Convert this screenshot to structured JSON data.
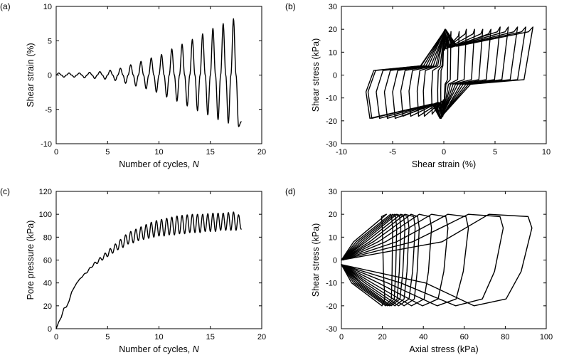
{
  "chart_data": [
    {
      "type": "line",
      "panel_label": "(a)",
      "xlabel": "Number of cycles, ",
      "xlabel_var": "N",
      "ylabel": "Shear strain (%)",
      "xlim": [
        0,
        20
      ],
      "ylim": [
        -10,
        10
      ],
      "xticks": [
        0,
        5,
        10,
        15,
        20
      ],
      "yticks": [
        -10,
        -5,
        0,
        5,
        10
      ],
      "grid": false,
      "series": [
        {
          "x": [
            0,
            0.25,
            0.5,
            0.75,
            1.0,
            1.25,
            1.5,
            1.75,
            2.0,
            2.25,
            2.5,
            2.75,
            3.0,
            3.25,
            3.5,
            3.75,
            4.0,
            4.25,
            4.5,
            4.75,
            5.0,
            5.25,
            5.5,
            5.75,
            6.0,
            6.25,
            6.5,
            6.75,
            7.0,
            7.25,
            7.5,
            7.75,
            8.0,
            8.25,
            8.5,
            8.75,
            9.0,
            9.25,
            9.5,
            9.75,
            10.0,
            10.25,
            10.5,
            10.75,
            11.0,
            11.25,
            11.5,
            11.75,
            12.0,
            12.25,
            12.5,
            12.75,
            13.0,
            13.25,
            13.5,
            13.75,
            14.0,
            14.25,
            14.5,
            14.75,
            15.0,
            15.25,
            15.5,
            15.75,
            16.0,
            16.25,
            16.5,
            16.75,
            17.0,
            17.25,
            17.5,
            17.75,
            18.0
          ],
          "y": [
            0,
            0.3,
            0,
            -0.3,
            0,
            0.3,
            0,
            -0.3,
            0,
            0.3,
            0,
            -0.4,
            0,
            0.4,
            0,
            -0.5,
            0,
            0.5,
            0,
            -0.6,
            0,
            0.7,
            0,
            -0.8,
            0,
            1.0,
            0,
            -1.2,
            0,
            1.5,
            0,
            -1.6,
            0,
            2.0,
            0,
            -2.0,
            0,
            2.5,
            0,
            -2.5,
            0,
            3.0,
            0,
            -3.2,
            0,
            3.8,
            0,
            -3.8,
            0,
            4.5,
            0,
            -4.5,
            0,
            5.2,
            0,
            -5.2,
            0,
            6.0,
            0,
            -5.8,
            0,
            6.8,
            0,
            -6.5,
            0,
            7.5,
            0,
            -7.0,
            0,
            8.2,
            0,
            -7.5,
            -6.8
          ]
        }
      ]
    },
    {
      "type": "line",
      "panel_label": "(b)",
      "xlabel": "Shear strain (%)",
      "ylabel": "Shear stress (kPa)",
      "xlim": [
        -10,
        10
      ],
      "ylim": [
        -30,
        30
      ],
      "xticks": [
        -10,
        -5,
        0,
        5,
        10
      ],
      "yticks": [
        -30,
        -20,
        -10,
        0,
        10,
        20,
        30
      ],
      "grid": false,
      "loops": [
        {
          "gmin": -0.3,
          "gmax": 0.4,
          "tau": 18
        },
        {
          "gmin": -0.6,
          "gmax": 0.7,
          "tau": 19
        },
        {
          "gmin": -1.2,
          "gmax": 1.5,
          "tau": 19
        },
        {
          "gmin": -2.0,
          "gmax": 2.2,
          "tau": 20
        },
        {
          "gmin": -2.6,
          "gmax": 3.0,
          "tau": 20
        },
        {
          "gmin": -3.4,
          "gmax": 3.8,
          "tau": 20
        },
        {
          "gmin": -4.2,
          "gmax": 4.6,
          "tau": 20
        },
        {
          "gmin": -5.0,
          "gmax": 5.5,
          "tau": 21
        },
        {
          "gmin": -5.8,
          "gmax": 6.3,
          "tau": 21
        },
        {
          "gmin": -6.6,
          "gmax": 7.2,
          "tau": 21
        },
        {
          "gmin": -7.4,
          "gmax": 8.0,
          "tau": 21
        },
        {
          "gmin": -7.6,
          "gmax": 8.7,
          "tau": 21
        }
      ]
    },
    {
      "type": "line",
      "panel_label": "(c)",
      "xlabel": "Number of cycles, ",
      "xlabel_var": "N",
      "ylabel": "Pore pressure (kPa)",
      "xlim": [
        0,
        20
      ],
      "ylim": [
        0,
        120
      ],
      "xticks": [
        0,
        5,
        10,
        15,
        20
      ],
      "yticks": [
        0,
        20,
        40,
        60,
        80,
        100,
        120
      ],
      "grid": false,
      "series": [
        {
          "x": [
            0,
            0.25,
            0.5,
            0.75,
            1.0,
            1.25,
            1.5,
            1.75,
            2.0,
            2.5,
            3.0,
            3.5,
            4.0,
            4.5,
            5.0,
            5.5,
            6.0,
            6.5,
            7.0,
            7.5,
            8.0,
            8.5,
            9.0,
            9.5,
            10.0,
            10.5,
            11.0,
            11.5,
            12.0,
            12.5,
            13.0,
            13.5,
            14.0,
            14.5,
            15.0,
            15.5,
            16.0,
            16.5,
            17.0,
            17.5,
            18.0
          ],
          "y": [
            0,
            6,
            10,
            18,
            19,
            24,
            32,
            36,
            40,
            45,
            49,
            54,
            57,
            60,
            63,
            66,
            69,
            71,
            74,
            75,
            77,
            78,
            79,
            80,
            81,
            81,
            82,
            82,
            83,
            83,
            84,
            84,
            84,
            85,
            85,
            85,
            86,
            86,
            86,
            86,
            87
          ],
          "upper": [
            0,
            6,
            10,
            18,
            19,
            24,
            32,
            36,
            40,
            46,
            50,
            56,
            60,
            64,
            68,
            72,
            76,
            80,
            84,
            86,
            88,
            90,
            92,
            94,
            95,
            96,
            97,
            98,
            99,
            99,
            100,
            100,
            100,
            100,
            101,
            101,
            101,
            101,
            102,
            102,
            97
          ]
        }
      ]
    },
    {
      "type": "line",
      "panel_label": "(d)",
      "xlabel": "Axial stress (kPa)",
      "ylabel": "Shear stress (kPa)",
      "xlim": [
        0,
        100
      ],
      "ylim": [
        -30,
        30
      ],
      "xticks": [
        0,
        20,
        40,
        60,
        80,
        100
      ],
      "yticks": [
        -30,
        -20,
        -10,
        0,
        10,
        20,
        30
      ],
      "grid": false,
      "loops": [
        {
          "a": 22,
          "b": 20,
          "c": 10
        },
        {
          "a": 24,
          "b": 25,
          "c": 12
        },
        {
          "a": 25,
          "b": 27,
          "c": 14
        },
        {
          "a": 26,
          "b": 29,
          "c": 16
        },
        {
          "a": 27,
          "b": 31,
          "c": 18
        },
        {
          "a": 29,
          "b": 33,
          "c": 20
        },
        {
          "a": 31,
          "b": 36,
          "c": 23
        },
        {
          "a": 34,
          "b": 38,
          "c": 26
        },
        {
          "a": 38,
          "b": 44,
          "c": 30
        },
        {
          "a": 44,
          "b": 52,
          "c": 36
        },
        {
          "a": 52,
          "b": 62,
          "c": 45
        },
        {
          "a": 62,
          "b": 79,
          "c": 58
        },
        {
          "a": 72,
          "b": 93,
          "c": 82
        }
      ]
    }
  ]
}
